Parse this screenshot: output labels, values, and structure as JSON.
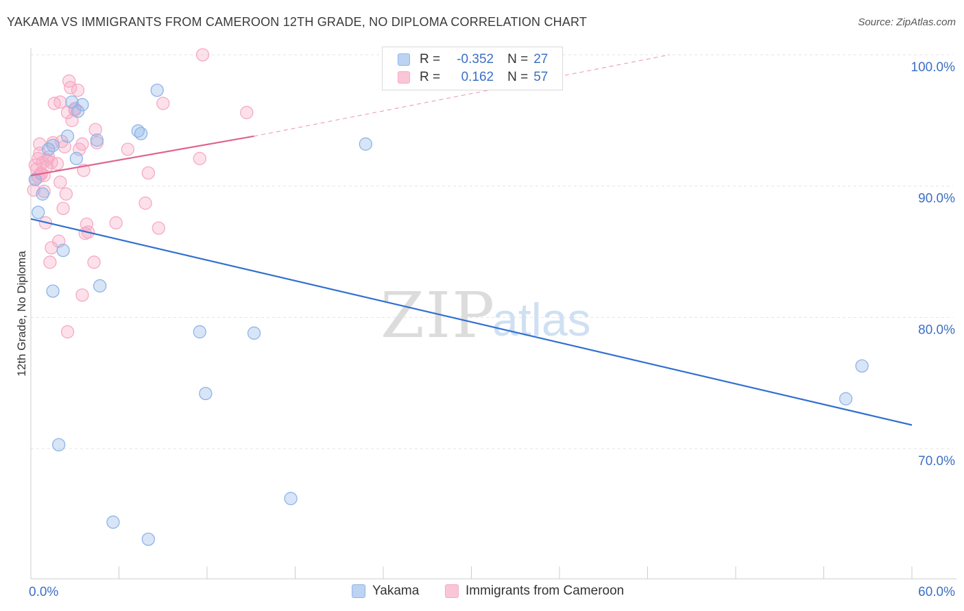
{
  "title": "YAKAMA VS IMMIGRANTS FROM CAMEROON 12TH GRADE, NO DIPLOMA CORRELATION CHART",
  "source": "Source: ZipAtlas.com",
  "watermark": {
    "zip": "ZIP",
    "atlas": "atlas"
  },
  "legend": {
    "r_label": "R =",
    "n_label": "N =",
    "rows": [
      {
        "r": "-0.352",
        "n": "27"
      },
      {
        "r": "0.162",
        "n": "57"
      }
    ]
  },
  "chart_data": {
    "type": "scatter",
    "title": "YAKAMA VS IMMIGRANTS FROM CAMEROON 12TH GRADE, NO DIPLOMA CORRELATION CHART",
    "xlabel": "",
    "ylabel": "12th Grade, No Diploma",
    "xlim": [
      0,
      60
    ],
    "ylim": [
      61,
      104
    ],
    "x_tick_labels": [
      "0.0%",
      "60.0%"
    ],
    "y_ticks": [
      70,
      80,
      90,
      100
    ],
    "y_tick_labels": [
      "70.0%",
      "80.0%",
      "90.0%",
      "100.0%"
    ],
    "grid": true,
    "legend_position": "top-center",
    "series": [
      {
        "name": "Yakama",
        "color": "#8db4e8",
        "line_color": "#2f6fd0",
        "r": -0.352,
        "n": 27,
        "trend": {
          "x": [
            0,
            60
          ],
          "y": [
            87.5,
            71.8
          ],
          "dashed_to": null
        },
        "points": [
          [
            0.3,
            90.5
          ],
          [
            0.5,
            88.0
          ],
          [
            0.8,
            89.4
          ],
          [
            1.2,
            92.8
          ],
          [
            1.5,
            93.1
          ],
          [
            2.5,
            93.8
          ],
          [
            2.8,
            96.4
          ],
          [
            3.2,
            95.7
          ],
          [
            3.5,
            96.2
          ],
          [
            3.1,
            92.1
          ],
          [
            4.5,
            93.5
          ],
          [
            7.3,
            94.2
          ],
          [
            7.5,
            94.0
          ],
          [
            8.6,
            97.3
          ],
          [
            2.2,
            85.1
          ],
          [
            1.5,
            82.0
          ],
          [
            4.7,
            82.4
          ],
          [
            11.5,
            78.9
          ],
          [
            15.2,
            78.8
          ],
          [
            11.9,
            74.2
          ],
          [
            1.9,
            70.3
          ],
          [
            5.6,
            64.4
          ],
          [
            8.0,
            63.1
          ],
          [
            17.7,
            66.2
          ],
          [
            22.8,
            93.2
          ],
          [
            56.6,
            76.3
          ],
          [
            55.5,
            73.8
          ]
        ]
      },
      {
        "name": "Immigrants from Cameroon",
        "color": "#f6a9c4",
        "line_color": "#e0628f",
        "r": 0.162,
        "n": 57,
        "trend": {
          "x": [
            0,
            15.2
          ],
          "y": [
            90.8,
            93.8
          ],
          "dash_to": [
            43.5,
            100.0
          ]
        },
        "points": [
          [
            0.2,
            89.7
          ],
          [
            0.3,
            90.5
          ],
          [
            0.4,
            91.3
          ],
          [
            0.5,
            92.1
          ],
          [
            0.6,
            93.2
          ],
          [
            0.7,
            91.0
          ],
          [
            0.8,
            91.8
          ],
          [
            0.9,
            90.8
          ],
          [
            1.0,
            87.2
          ],
          [
            1.1,
            91.5
          ],
          [
            1.2,
            92.2
          ],
          [
            1.3,
            84.2
          ],
          [
            1.4,
            85.3
          ],
          [
            1.5,
            93.3
          ],
          [
            1.6,
            96.3
          ],
          [
            1.8,
            91.7
          ],
          [
            1.9,
            85.8
          ],
          [
            2.0,
            90.3
          ],
          [
            2.1,
            93.4
          ],
          [
            2.2,
            88.3
          ],
          [
            2.3,
            93.0
          ],
          [
            2.4,
            89.4
          ],
          [
            2.5,
            95.6
          ],
          [
            2.6,
            98.0
          ],
          [
            2.7,
            97.5
          ],
          [
            2.8,
            95.0
          ],
          [
            3.0,
            95.8
          ],
          [
            3.2,
            97.3
          ],
          [
            3.3,
            92.8
          ],
          [
            3.5,
            93.2
          ],
          [
            3.6,
            91.2
          ],
          [
            3.7,
            86.4
          ],
          [
            3.9,
            86.5
          ],
          [
            3.8,
            87.1
          ],
          [
            4.3,
            84.2
          ],
          [
            4.4,
            94.3
          ],
          [
            4.5,
            93.3
          ],
          [
            5.8,
            87.2
          ],
          [
            6.6,
            92.8
          ],
          [
            7.8,
            88.7
          ],
          [
            8.0,
            91.0
          ],
          [
            8.7,
            86.8
          ],
          [
            9.0,
            96.3
          ],
          [
            11.5,
            92.1
          ],
          [
            11.7,
            100.0
          ],
          [
            14.7,
            95.6
          ],
          [
            2.5,
            78.9
          ],
          [
            3.5,
            81.7
          ],
          [
            0.5,
            90.7
          ],
          [
            0.9,
            89.6
          ],
          [
            1.1,
            92.0
          ],
          [
            1.4,
            91.8
          ],
          [
            0.3,
            91.6
          ],
          [
            0.7,
            90.9
          ],
          [
            3.0,
            95.9
          ],
          [
            2.0,
            96.4
          ],
          [
            0.6,
            92.5
          ]
        ]
      }
    ]
  }
}
